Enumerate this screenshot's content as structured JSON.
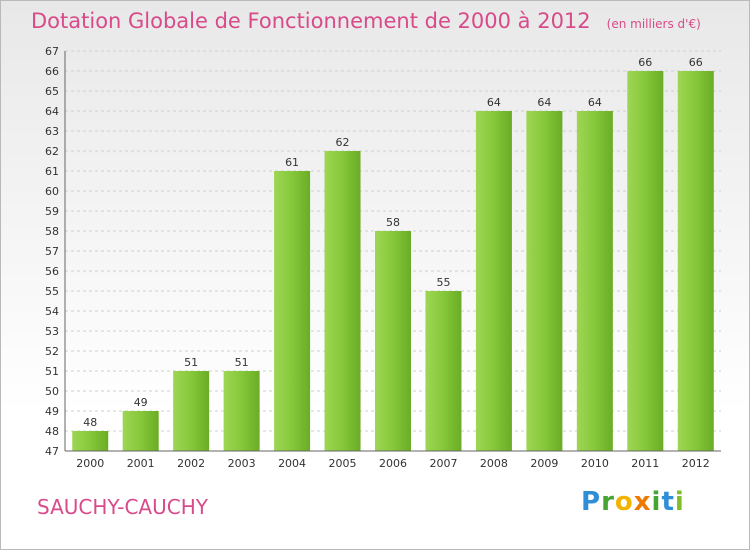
{
  "title": "Dotation Globale de Fonctionnement de 2000 à 2012",
  "unit": "(en milliers d'€)",
  "town": "SAUCHY-CAUCHY",
  "brand": {
    "p": "P",
    "r": "r",
    "o": "o",
    "x": "x",
    "i1": "i",
    "t": "t",
    "i2": "i"
  },
  "colors": {
    "bar": "#7cc233",
    "title": "#d84a8a"
  },
  "chart_data": {
    "type": "bar",
    "categories": [
      "2000",
      "2001",
      "2002",
      "2003",
      "2004",
      "2005",
      "2006",
      "2007",
      "2008",
      "2009",
      "2010",
      "2011",
      "2012"
    ],
    "values": [
      48,
      49,
      51,
      51,
      61,
      62,
      58,
      55,
      64,
      64,
      64,
      66,
      66
    ],
    "ylim": [
      47,
      67
    ],
    "yticks": [
      47,
      48,
      49,
      50,
      51,
      52,
      53,
      54,
      55,
      56,
      57,
      58,
      59,
      60,
      61,
      62,
      63,
      64,
      65,
      66,
      67
    ],
    "grid": true,
    "data_labels": true
  }
}
